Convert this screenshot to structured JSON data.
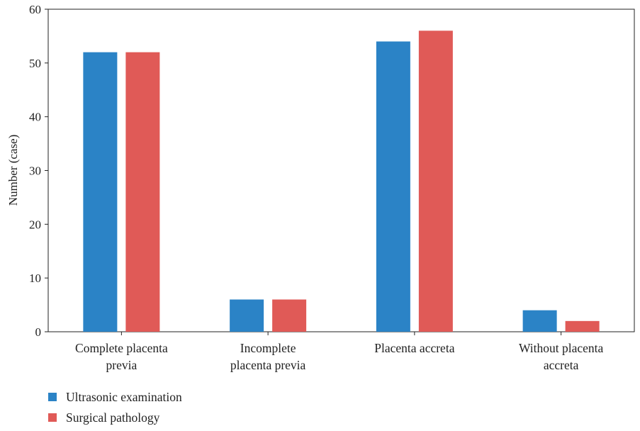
{
  "chart_data": {
    "type": "bar",
    "categories": [
      [
        "Complete placenta",
        "previa"
      ],
      [
        "Incomplete",
        "placenta previa"
      ],
      [
        "Placenta accreta"
      ],
      [
        "Without placenta",
        "accreta"
      ]
    ],
    "series": [
      {
        "name": "Ultrasonic examination",
        "values": [
          52,
          6,
          54,
          4
        ],
        "color": "#2b83c6"
      },
      {
        "name": "Surgical pathology",
        "values": [
          52,
          6,
          56,
          2
        ],
        "color": "#e05a57"
      }
    ],
    "xlabel": "",
    "ylabel": "Number (case)",
    "ylim": [
      0,
      60
    ],
    "yticks": [
      "0",
      "10",
      "20",
      "30",
      "40",
      "50",
      "60"
    ],
    "grid": false,
    "legend_position": "bottom-left"
  }
}
